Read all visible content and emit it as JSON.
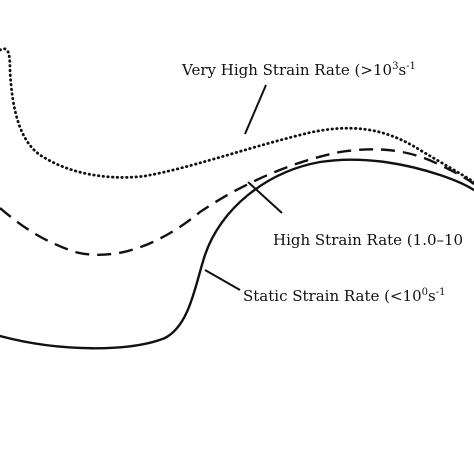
{
  "labels": {
    "very_high": {
      "text": "Very High Strain Rate (>10",
      "exp1": "3",
      "mid": "s",
      "exp2": "-1"
    },
    "high": {
      "text": "High Strain Rate (1.0–10"
    },
    "static": {
      "text": "Static Strain Rate (<10",
      "exp1": "0",
      "mid": "s",
      "exp2": "-1"
    }
  },
  "curves": [
    {
      "name": "very-high-strain-rate",
      "style": "dotted"
    },
    {
      "name": "high-strain-rate",
      "style": "dashed"
    },
    {
      "name": "static-strain-rate",
      "style": "solid"
    }
  ],
  "colors": {
    "line": "#111111",
    "background": "#ffffff"
  }
}
